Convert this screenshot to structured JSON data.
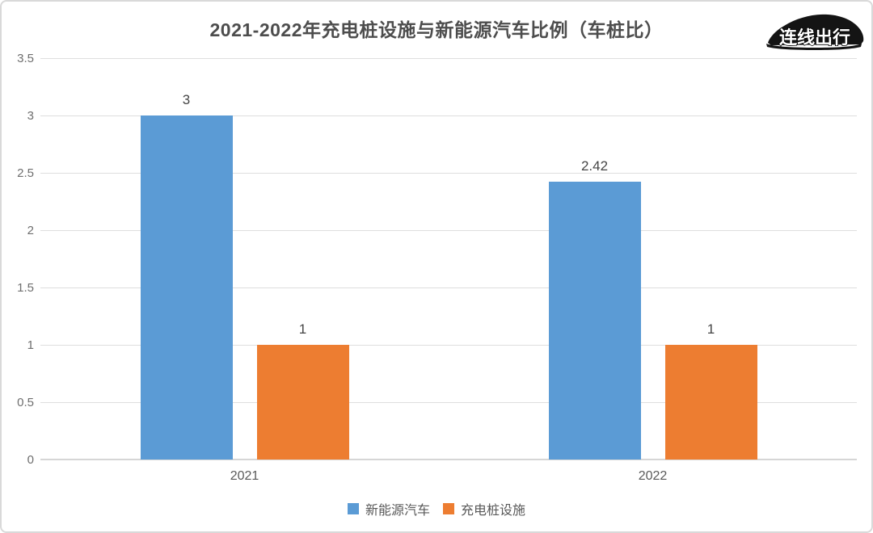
{
  "title": "2021-2022年充电桩设施与新能源汽车比例（车桩比）",
  "logo": {
    "text": "连线出行",
    "icon": "car-icon"
  },
  "chart_data": {
    "type": "bar",
    "categories": [
      "2021",
      "2022"
    ],
    "series": [
      {
        "name": "新能源汽车",
        "color": "#5B9BD5",
        "values": [
          3,
          2.42
        ],
        "labels": [
          "3",
          "2.42"
        ]
      },
      {
        "name": "充电桩设施",
        "color": "#ED7D31",
        "values": [
          1,
          1
        ],
        "labels": [
          "1",
          "1"
        ]
      }
    ],
    "ylim": [
      0,
      3.5
    ],
    "yticks": [
      0,
      0.5,
      1,
      1.5,
      2,
      2.5,
      3,
      3.5
    ],
    "ytick_labels": [
      "0",
      "0.5",
      "1",
      "1.5",
      "2",
      "2.5",
      "3",
      "3.5"
    ],
    "grid": true,
    "legend_position": "bottom",
    "colors": {
      "grid": "#dedede",
      "axis": "#d6d6d6",
      "tick_text": "#6e6e6e",
      "title_text": "#4d4d4d"
    }
  }
}
